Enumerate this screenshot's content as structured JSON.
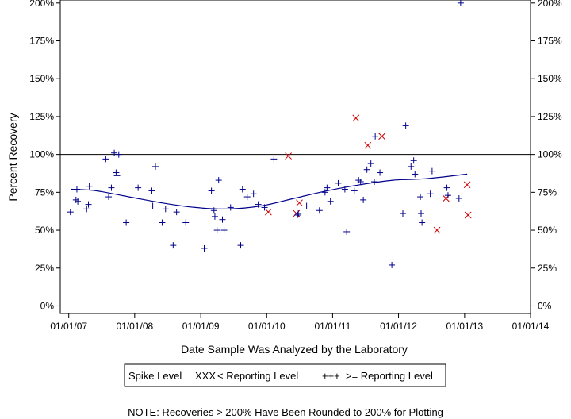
{
  "chart_data": {
    "type": "scatter",
    "title": "",
    "xlabel": "Date Sample Was Analyzed by the Laboratory",
    "ylabel": "Percent Recovery",
    "x_ticks": [
      "01/01/07",
      "01/01/08",
      "01/01/09",
      "01/01/10",
      "01/01/11",
      "01/01/12",
      "01/01/13",
      "01/01/14"
    ],
    "y_ticks": [
      "0%",
      "25%",
      "50%",
      "75%",
      "100%",
      "125%",
      "150%",
      "175%",
      "200%"
    ],
    "xlim": [
      "2006-11-15",
      "2014-01-01"
    ],
    "ylim": [
      -5,
      202
    ],
    "grid": false,
    "reference_line": 100,
    "legend": {
      "title": "Spike Level",
      "placement": "bottom",
      "entries": [
        {
          "marker": "XXX",
          "label": "< Reporting Level",
          "color": "#cc0000"
        },
        {
          "marker": "+++",
          "label": ">= Reporting Level",
          "color": "#00008b"
        }
      ]
    },
    "note": "NOTE: Recoveries > 200% Have Been Rounded to 200% for Plotting",
    "series": [
      {
        "marker": "x",
        "color": "#cc0000",
        "points": [
          [
            "2010-01-10",
            62
          ],
          [
            "2010-05-01",
            99
          ],
          [
            "2010-06-15",
            61
          ],
          [
            "2010-07-01",
            68
          ],
          [
            "2011-05-10",
            124
          ],
          [
            "2011-07-15",
            106
          ],
          [
            "2011-10-01",
            112
          ],
          [
            "2012-08-01",
            50
          ],
          [
            "2012-09-20",
            71
          ],
          [
            "2013-01-15",
            80
          ],
          [
            "2013-01-20",
            60
          ]
        ]
      },
      {
        "marker": "+",
        "color": "#00008b",
        "points": [
          [
            "2007-01-10",
            62
          ],
          [
            "2007-02-10",
            70
          ],
          [
            "2007-02-15",
            77
          ],
          [
            "2007-02-20",
            69
          ],
          [
            "2007-04-10",
            64
          ],
          [
            "2007-04-20",
            67
          ],
          [
            "2007-04-25",
            79
          ],
          [
            "2007-07-25",
            97
          ],
          [
            "2007-08-10",
            72
          ],
          [
            "2007-08-25",
            78
          ],
          [
            "2007-09-10",
            101
          ],
          [
            "2007-09-20",
            88
          ],
          [
            "2007-09-25",
            86
          ],
          [
            "2007-10-05",
            100
          ],
          [
            "2007-11-15",
            55
          ],
          [
            "2008-01-20",
            78
          ],
          [
            "2008-04-05",
            76
          ],
          [
            "2008-04-10",
            66
          ],
          [
            "2008-04-25",
            92
          ],
          [
            "2008-06-01",
            55
          ],
          [
            "2008-06-20",
            64
          ],
          [
            "2008-08-01",
            40
          ],
          [
            "2008-08-20",
            62
          ],
          [
            "2008-10-10",
            55
          ],
          [
            "2009-01-20",
            38
          ],
          [
            "2009-03-01",
            76
          ],
          [
            "2009-03-15",
            63
          ],
          [
            "2009-03-20",
            59
          ],
          [
            "2009-04-01",
            50
          ],
          [
            "2009-04-10",
            83
          ],
          [
            "2009-05-01",
            57
          ],
          [
            "2009-05-10",
            50
          ],
          [
            "2009-06-15",
            65
          ],
          [
            "2009-08-10",
            40
          ],
          [
            "2009-08-20",
            77
          ],
          [
            "2009-09-15",
            72
          ],
          [
            "2009-10-20",
            74
          ],
          [
            "2009-11-15",
            67
          ],
          [
            "2009-12-20",
            65
          ],
          [
            "2010-02-10",
            97
          ],
          [
            "2010-06-20",
            60
          ],
          [
            "2010-06-25",
            61
          ],
          [
            "2010-08-10",
            66
          ],
          [
            "2010-10-20",
            63
          ],
          [
            "2010-11-20",
            75
          ],
          [
            "2010-12-01",
            78
          ],
          [
            "2010-12-20",
            69
          ],
          [
            "2011-02-01",
            81
          ],
          [
            "2011-03-10",
            77
          ],
          [
            "2011-03-20",
            49
          ],
          [
            "2011-05-01",
            76
          ],
          [
            "2011-05-25",
            83
          ],
          [
            "2011-06-05",
            82
          ],
          [
            "2011-06-20",
            70
          ],
          [
            "2011-07-10",
            90
          ],
          [
            "2011-08-01",
            94
          ],
          [
            "2011-08-20",
            82
          ],
          [
            "2011-08-25",
            112
          ],
          [
            "2011-09-20",
            88
          ],
          [
            "2011-11-25",
            27
          ],
          [
            "2012-01-25",
            61
          ],
          [
            "2012-02-10",
            119
          ],
          [
            "2012-03-10",
            92
          ],
          [
            "2012-03-25",
            96
          ],
          [
            "2012-04-01",
            87
          ],
          [
            "2012-05-01",
            72
          ],
          [
            "2012-05-05",
            61
          ],
          [
            "2012-05-10",
            55
          ],
          [
            "2012-06-25",
            74
          ],
          [
            "2012-07-05",
            89
          ],
          [
            "2012-09-25",
            78
          ],
          [
            "2012-10-01",
            73
          ],
          [
            "2012-12-01",
            71
          ],
          [
            "2012-12-10",
            200
          ]
        ]
      }
    ],
    "trend_line": {
      "color": "#00008b",
      "points": [
        [
          "2007-01-15",
          77
        ],
        [
          "2007-06-01",
          76
        ],
        [
          "2007-12-01",
          72
        ],
        [
          "2008-06-01",
          68
        ],
        [
          "2008-12-01",
          65
        ],
        [
          "2009-06-01",
          64
        ],
        [
          "2009-12-01",
          66
        ],
        [
          "2010-06-01",
          71
        ],
        [
          "2010-12-01",
          76
        ],
        [
          "2011-06-01",
          80
        ],
        [
          "2011-12-01",
          83
        ],
        [
          "2012-06-01",
          84
        ],
        [
          "2013-01-15",
          87
        ]
      ]
    }
  }
}
